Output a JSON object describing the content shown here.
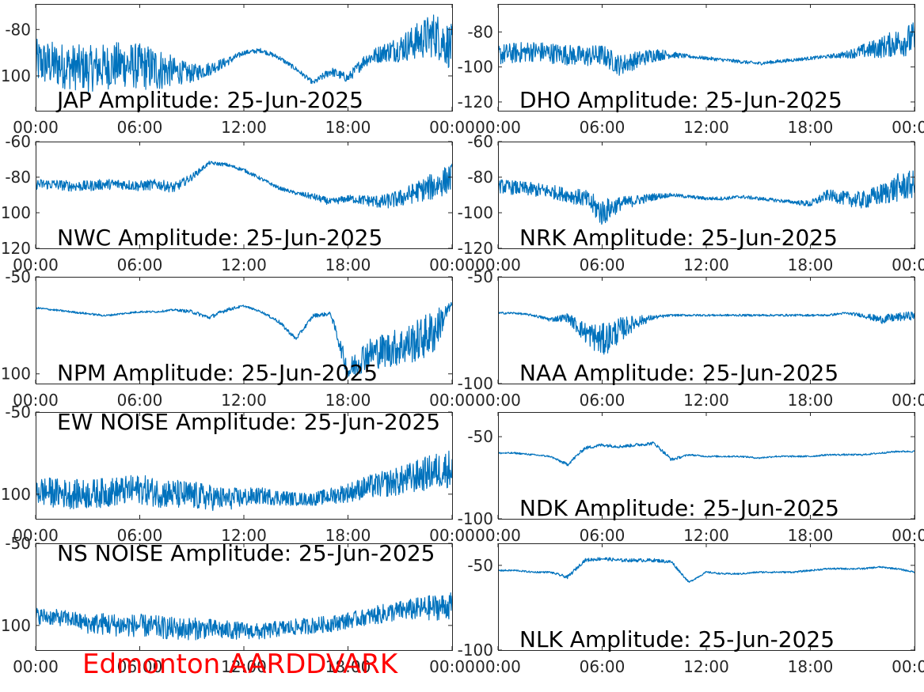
{
  "footer": {
    "text": "Edmonton AARDDVARK",
    "color": "#ff0000"
  },
  "series_color": "#0072bd",
  "chart_data": [
    {
      "type": "line",
      "title": "JAP Amplitude: 25-Jun-2025",
      "xticks": [
        "00:00",
        "06:00",
        "12:00",
        "18:00",
        "00:00"
      ],
      "xlim": [
        0,
        24
      ],
      "ylim": [
        -115,
        -69
      ],
      "yticks": [
        -80,
        -100
      ],
      "ytick_labels": [
        "-80",
        "-100"
      ],
      "series": [
        {
          "x": [
            0,
            1,
            2,
            3,
            4,
            5,
            6,
            7,
            8,
            9,
            10,
            11,
            12,
            13,
            14,
            15,
            16,
            17,
            18,
            19,
            20,
            21,
            22,
            23,
            24
          ],
          "values": [
            -94,
            -95,
            -96,
            -97,
            -96,
            -95,
            -96,
            -97,
            -98,
            -99,
            -97,
            -94,
            -90,
            -89,
            -92,
            -97,
            -103,
            -98,
            -101,
            -93,
            -90,
            -88,
            -85,
            -82,
            -88
          ],
          "noise": [
            10,
            10,
            10,
            10,
            10,
            10,
            10,
            10,
            6,
            4,
            3,
            2,
            1,
            1,
            1,
            1,
            1,
            2,
            2,
            3,
            4,
            6,
            8,
            10,
            10
          ]
        }
      ]
    },
    {
      "type": "line",
      "title": "DHO Amplitude: 25-Jun-2025",
      "xticks": [
        "00:00",
        "06:00",
        "12:00",
        "18:00",
        "00:00"
      ],
      "xlim": [
        0,
        24
      ],
      "ylim": [
        -125,
        -64
      ],
      "yticks": [
        -80,
        -100,
        -120
      ],
      "ytick_labels": [
        "-80",
        "-100",
        "-120"
      ],
      "series": [
        {
          "x": [
            0,
            1,
            2,
            3,
            4,
            5,
            6,
            7,
            8,
            9,
            10,
            11,
            12,
            13,
            14,
            15,
            16,
            17,
            18,
            19,
            20,
            21,
            22,
            23,
            24
          ],
          "values": [
            -93,
            -92,
            -91,
            -92,
            -93,
            -94,
            -93,
            -99,
            -96,
            -93,
            -93,
            -94,
            -95,
            -96,
            -97,
            -98,
            -97,
            -96,
            -95,
            -94,
            -93,
            -91,
            -89,
            -86,
            -84
          ],
          "noise": [
            6,
            6,
            6,
            6,
            6,
            6,
            6,
            6,
            5,
            4,
            2,
            1,
            1,
            1,
            1,
            1,
            1,
            1,
            1,
            1,
            2,
            4,
            6,
            8,
            10
          ]
        }
      ]
    },
    {
      "type": "line",
      "title": "NWC Amplitude: 25-Jun-2025",
      "xticks": [
        "00:00",
        "06:00",
        "12:00",
        "18:00",
        "00:00"
      ],
      "xlim": [
        0,
        24
      ],
      "ylim": [
        -120,
        -60
      ],
      "yticks": [
        -60,
        -80,
        -100,
        -120
      ],
      "ytick_labels": [
        "-60",
        "-80",
        "-100",
        "-120"
      ],
      "series": [
        {
          "x": [
            0,
            1,
            2,
            3,
            4,
            5,
            6,
            7,
            8,
            9,
            10,
            11,
            12,
            13,
            14,
            15,
            16,
            17,
            18,
            19,
            20,
            21,
            22,
            23,
            24
          ],
          "values": [
            -84,
            -84,
            -85,
            -85,
            -84,
            -84,
            -85,
            -84,
            -86,
            -80,
            -72,
            -73,
            -76,
            -81,
            -86,
            -89,
            -91,
            -94,
            -92,
            -93,
            -94,
            -92,
            -88,
            -85,
            -80
          ],
          "noise": [
            3,
            3,
            3,
            3,
            3,
            3,
            3,
            3,
            3,
            2,
            1,
            1,
            1,
            1,
            1,
            1,
            2,
            2,
            2,
            3,
            4,
            5,
            6,
            8,
            8
          ]
        }
      ]
    },
    {
      "type": "line",
      "title": "NRK Amplitude: 25-Jun-2025",
      "xticks": [
        "00:00",
        "06:00",
        "12:00",
        "18:00",
        "00:00"
      ],
      "xlim": [
        0,
        24
      ],
      "ylim": [
        -120,
        -60
      ],
      "yticks": [
        -60,
        -80,
        -100,
        -120
      ],
      "ytick_labels": [
        "-60",
        "-80",
        "-100",
        "-120"
      ],
      "series": [
        {
          "x": [
            0,
            1,
            2,
            3,
            4,
            5,
            6,
            7,
            8,
            9,
            10,
            11,
            12,
            13,
            14,
            15,
            16,
            17,
            18,
            19,
            20,
            21,
            22,
            23,
            24
          ],
          "values": [
            -85,
            -86,
            -87,
            -88,
            -90,
            -92,
            -100,
            -95,
            -93,
            -91,
            -90,
            -91,
            -92,
            -92,
            -91,
            -92,
            -93,
            -94,
            -95,
            -90,
            -92,
            -93,
            -90,
            -86,
            -84
          ],
          "noise": [
            4,
            4,
            4,
            4,
            4,
            5,
            8,
            4,
            3,
            2,
            1,
            1,
            1,
            1,
            1,
            1,
            1,
            1,
            2,
            3,
            4,
            5,
            6,
            8,
            8
          ]
        }
      ]
    },
    {
      "type": "line",
      "title": "NPM Amplitude: 25-Jun-2025",
      "xticks": [
        "00:00",
        "06:00",
        "12:00",
        "18:00",
        "00:00"
      ],
      "xlim": [
        0,
        24
      ],
      "ylim": [
        -105,
        -50
      ],
      "yticks": [
        -50,
        -100
      ],
      "ytick_labels": [
        "-50",
        "-100"
      ],
      "series": [
        {
          "x": [
            0,
            1,
            2,
            3,
            4,
            5,
            6,
            7,
            8,
            9,
            10,
            11,
            12,
            13,
            14,
            15,
            16,
            17,
            18,
            19,
            20,
            21,
            22,
            23,
            24
          ],
          "values": [
            -66,
            -67,
            -68,
            -69,
            -70,
            -69,
            -68,
            -68,
            -67,
            -68,
            -71,
            -67,
            -65,
            -68,
            -73,
            -82,
            -70,
            -69,
            -99,
            -90,
            -88,
            -86,
            -83,
            -78,
            -64
          ],
          "noise": [
            0.5,
            0.5,
            0.5,
            0.5,
            0.5,
            0.5,
            0.5,
            0.5,
            0.5,
            1,
            1,
            1,
            0.5,
            0.5,
            1,
            1,
            1,
            1,
            6,
            8,
            9,
            10,
            11,
            12,
            1
          ]
        }
      ]
    },
    {
      "type": "line",
      "title": "NAA Amplitude: 25-Jun-2025",
      "xticks": [
        "00:00",
        "06:00",
        "12:00",
        "18:00",
        "00:00"
      ],
      "xlim": [
        0,
        24
      ],
      "ylim": [
        -100,
        -50
      ],
      "yticks": [
        -50,
        -100
      ],
      "ytick_labels": [
        "-50",
        "-100"
      ],
      "series": [
        {
          "x": [
            0,
            1,
            2,
            3,
            4,
            5,
            6,
            7,
            8,
            9,
            10,
            11,
            12,
            13,
            14,
            15,
            16,
            17,
            18,
            19,
            20,
            21,
            22,
            23,
            24
          ],
          "values": [
            -67,
            -67,
            -68,
            -70,
            -69,
            -76,
            -80,
            -75,
            -71,
            -69,
            -68,
            -68,
            -68,
            -68,
            -68,
            -68,
            -68,
            -68,
            -68,
            -68,
            -67,
            -68,
            -70,
            -69,
            -68
          ],
          "noise": [
            0.5,
            0.5,
            0.5,
            1,
            2,
            5,
            8,
            6,
            3,
            1,
            0.5,
            0.5,
            0.5,
            0.5,
            0.5,
            0.5,
            0.5,
            0.5,
            0.5,
            0.5,
            0.5,
            1,
            2,
            2,
            2
          ]
        }
      ]
    },
    {
      "type": "line",
      "title": "EW NOISE Amplitude: 25-Jun-2025",
      "xticks": [
        "00:00",
        "06:00",
        "12:00",
        "18:00",
        "00:00"
      ],
      "xlim": [
        0,
        24
      ],
      "ylim": [
        -115,
        -50
      ],
      "yticks": [
        -50,
        -100
      ],
      "ytick_labels": [
        "-50",
        "-100"
      ],
      "series": [
        {
          "x": [
            0,
            1,
            2,
            3,
            4,
            5,
            6,
            7,
            8,
            9,
            10,
            11,
            12,
            13,
            14,
            15,
            16,
            17,
            18,
            19,
            20,
            21,
            22,
            23,
            24
          ],
          "values": [
            -98,
            -99,
            -100,
            -100,
            -99,
            -98,
            -97,
            -99,
            -100,
            -101,
            -102,
            -103,
            -102,
            -101,
            -102,
            -103,
            -103,
            -101,
            -99,
            -96,
            -94,
            -92,
            -89,
            -86,
            -84
          ],
          "noise": [
            9,
            9,
            9,
            9,
            9,
            9,
            9,
            9,
            9,
            9,
            8,
            7,
            6,
            5,
            5,
            4,
            4,
            5,
            6,
            7,
            8,
            9,
            10,
            11,
            12
          ]
        }
      ]
    },
    {
      "type": "line",
      "title": "NDK Amplitude: 25-Jun-2025",
      "xticks": [
        "00:00",
        "06:00",
        "12:00",
        "18:00",
        "00:00"
      ],
      "xlim": [
        0,
        24
      ],
      "ylim": [
        -100,
        -35
      ],
      "yticks": [
        -50,
        -100
      ],
      "ytick_labels": [
        "-50",
        "-100"
      ],
      "series": [
        {
          "x": [
            0,
            1,
            2,
            3,
            4,
            5,
            6,
            7,
            8,
            9,
            10,
            11,
            12,
            13,
            14,
            15,
            16,
            17,
            18,
            19,
            20,
            21,
            22,
            23,
            24
          ],
          "values": [
            -60,
            -60,
            -61,
            -62,
            -67,
            -57,
            -55,
            -56,
            -55,
            -54,
            -64,
            -61,
            -62,
            -62,
            -62,
            -63,
            -62,
            -62,
            -62,
            -61,
            -61,
            -61,
            -60,
            -59,
            -59
          ],
          "noise": [
            0.5,
            0.5,
            0.5,
            0.5,
            1,
            1,
            1,
            1,
            1,
            1,
            1,
            0.5,
            0.5,
            0.5,
            0.5,
            0.5,
            0.5,
            0.5,
            0.5,
            0.5,
            0.5,
            0.5,
            0.5,
            0.5,
            0.5
          ]
        }
      ]
    },
    {
      "type": "line",
      "title": "NS NOISE Amplitude: 25-Jun-2025",
      "xticks": [
        "00:00",
        "06:00",
        "12:00",
        "18:00",
        "00:00"
      ],
      "xlim": [
        0,
        24
      ],
      "ylim": [
        -115,
        -50
      ],
      "yticks": [
        -50,
        -100
      ],
      "ytick_labels": [
        "-50",
        "-100"
      ],
      "series": [
        {
          "x": [
            0,
            1,
            2,
            3,
            4,
            5,
            6,
            7,
            8,
            9,
            10,
            11,
            12,
            13,
            14,
            15,
            16,
            17,
            18,
            19,
            20,
            21,
            22,
            23,
            24
          ],
          "values": [
            -94,
            -95,
            -96,
            -99,
            -99,
            -100,
            -100,
            -101,
            -102,
            -102,
            -102,
            -103,
            -103,
            -104,
            -102,
            -101,
            -100,
            -99,
            -97,
            -95,
            -93,
            -91,
            -90,
            -89,
            -88
          ],
          "noise": [
            5,
            5,
            5,
            6,
            7,
            7,
            7,
            7,
            7,
            7,
            6,
            6,
            5,
            5,
            5,
            5,
            5,
            5,
            5,
            5,
            6,
            6,
            7,
            8,
            8
          ]
        }
      ]
    },
    {
      "type": "line",
      "title": "NLK Amplitude: 25-Jun-2025",
      "xticks": [
        "00:00",
        "06:00",
        "12:00",
        "18:00",
        "00:00"
      ],
      "xlim": [
        0,
        24
      ],
      "ylim": [
        -100,
        -37
      ],
      "yticks": [
        -50,
        -100
      ],
      "ytick_labels": [
        "-50",
        "-100"
      ],
      "series": [
        {
          "x": [
            0,
            1,
            2,
            3,
            4,
            5,
            6,
            7,
            8,
            9,
            10,
            11,
            12,
            13,
            14,
            15,
            16,
            17,
            18,
            19,
            20,
            21,
            22,
            23,
            24
          ],
          "values": [
            -53,
            -53,
            -54,
            -54,
            -57,
            -47,
            -46,
            -47,
            -47,
            -47,
            -48,
            -60,
            -54,
            -55,
            -55,
            -54,
            -54,
            -54,
            -53,
            -52,
            -52,
            -52,
            -51,
            -52,
            -54
          ],
          "noise": [
            0.5,
            0.5,
            0.5,
            0.5,
            1,
            1,
            1,
            1,
            1,
            1,
            1,
            0.5,
            0.5,
            0.5,
            0.5,
            0.5,
            0.5,
            0.5,
            0.5,
            0.5,
            0.5,
            0.5,
            0.5,
            0.5,
            0.5
          ]
        }
      ]
    }
  ]
}
